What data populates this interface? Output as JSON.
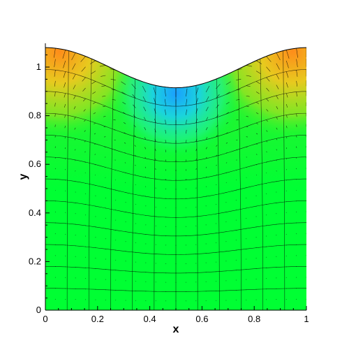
{
  "chart_data": {
    "type": "contour-vector",
    "title": "",
    "xlabel": "x",
    "ylabel": "y",
    "xlim": [
      0,
      1
    ],
    "ylim": [
      0,
      1.1
    ],
    "x_ticks": [
      0,
      0.2,
      0.4,
      0.6,
      0.8,
      1
    ],
    "x_tick_labels": [
      "0",
      "0.2",
      "0.4",
      "0.6",
      "0.8",
      "1"
    ],
    "y_ticks": [
      0,
      0.2,
      0.4,
      0.6,
      0.8,
      1
    ],
    "y_tick_labels": [
      "0",
      "0.2",
      "0.4",
      "0.6",
      "0.8",
      "1"
    ],
    "top_surface": {
      "x": [
        0,
        0.1,
        0.2,
        0.3,
        0.4,
        0.5,
        0.6,
        0.7,
        0.8,
        0.9,
        1.0
      ],
      "y": [
        1.08,
        1.06,
        1.02,
        0.97,
        0.93,
        0.915,
        0.93,
        0.97,
        1.02,
        1.06,
        1.08
      ]
    },
    "grid": {
      "columns": 12,
      "rows": 12
    },
    "color_field": {
      "background": "#00ff33",
      "peak_high": "#ff8c1a",
      "peak_low": "#1ab4ff",
      "mid": "#90e020"
    }
  }
}
